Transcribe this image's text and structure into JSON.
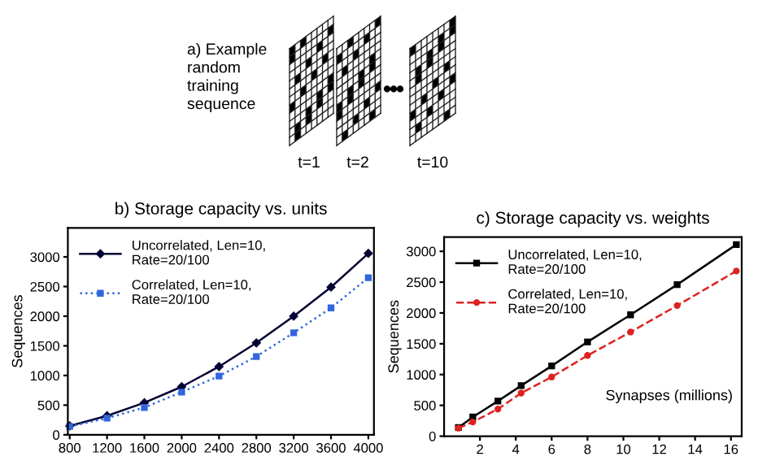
{
  "chart_data": [
    {
      "type": "other",
      "annotations": [
        "a) Example\nrandom\ntraining\nsequence",
        "t=1",
        "t=2",
        "t=10"
      ]
    },
    {
      "type": "line",
      "title": "b) Storage capacity vs. units",
      "ylabel": "Sequences",
      "x": [
        800,
        1200,
        1600,
        2000,
        2400,
        2800,
        3200,
        3600,
        4000
      ],
      "series": [
        {
          "name": "Uncorrelated, Len=10,\nRate=20/100",
          "color": "#000033",
          "marker": "diamond",
          "line_style": "solid",
          "values": [
            150,
            320,
            540,
            810,
            1150,
            1550,
            2000,
            2490,
            3060
          ]
        },
        {
          "name": "Correlated, Len=10,\nRate=20/100",
          "color": "#3366dd",
          "marker": "square",
          "line_style": "dotted",
          "values": [
            140,
            280,
            460,
            720,
            990,
            1320,
            1720,
            2140,
            2650
          ]
        }
      ],
      "xlim": [
        780,
        4060
      ],
      "xticks": [
        800,
        1200,
        1600,
        2000,
        2400,
        2800,
        3200,
        3600,
        4000
      ],
      "ylim": [
        0,
        3490
      ],
      "yticks": [
        0,
        500,
        1000,
        1500,
        2000,
        2500,
        3000
      ],
      "grid": false,
      "legend": "top left"
    },
    {
      "type": "line",
      "title": "c) Storage capacity vs. weights",
      "ylabel": "Sequences",
      "xlabel": "Synapses (millions)",
      "x": [
        0.8,
        1.6,
        3.0,
        4.3,
        6.0,
        8.0,
        10.4,
        13.0,
        16.3
      ],
      "series": [
        {
          "name": "Uncorrelated, Len=10,\nRate=20/100",
          "color": "#000000",
          "marker": "square",
          "line_style": "solid",
          "values": [
            140,
            310,
            570,
            820,
            1140,
            1530,
            1970,
            2460,
            3110
          ]
        },
        {
          "name": "Correlated, Len=10,\nRate=20/100",
          "color": "#dd2222",
          "marker": "circle",
          "line_style": "dashed",
          "values": [
            130,
            230,
            440,
            700,
            960,
            1310,
            1690,
            2120,
            2680
          ]
        }
      ],
      "xlim": [
        0,
        16.6
      ],
      "xticks": [
        2,
        4,
        6,
        8,
        10,
        12,
        14,
        16
      ],
      "ylim": [
        0,
        3230
      ],
      "yticks": [
        0,
        500,
        1000,
        1500,
        2000,
        2500,
        3000
      ],
      "grid": false,
      "legend": "top left"
    }
  ]
}
